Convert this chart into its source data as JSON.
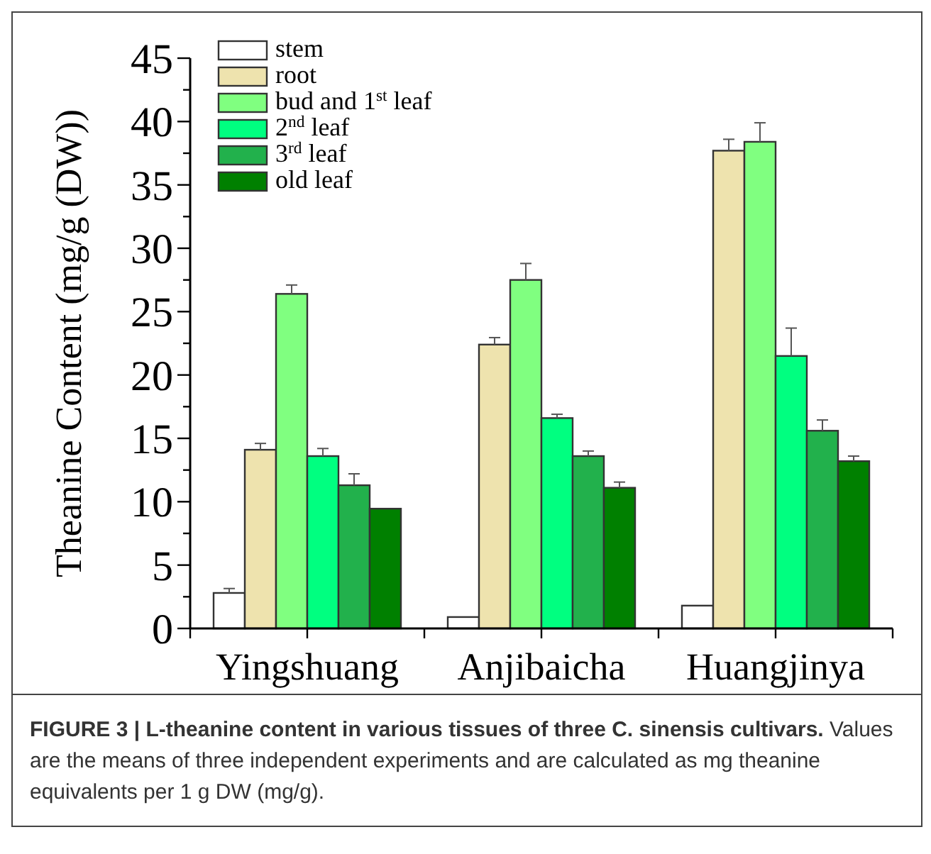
{
  "chart_data": {
    "type": "bar",
    "title": "FIGURE 3 | L-theanine content in various tissues of three C. sinensis cultivars.",
    "ylabel": "Theanine Content (mg/g (DW))",
    "categories": [
      "Yingshuang",
      "Anjibaicha",
      "Huangjinya"
    ],
    "series": [
      {
        "name": "stem",
        "color": "#ffffff",
        "values": [
          2.8,
          0.9,
          1.8
        ],
        "errors": [
          0.35,
          null,
          null
        ]
      },
      {
        "name": "root",
        "color": "#eee3ae",
        "values": [
          14.1,
          22.4,
          37.7
        ],
        "errors": [
          0.5,
          0.55,
          0.9
        ]
      },
      {
        "name": "bud and 1$^{st}$ leaf",
        "color": "#80ff80",
        "values": [
          26.4,
          27.5,
          38.4
        ],
        "errors": [
          0.7,
          1.3,
          1.5
        ]
      },
      {
        "name": "2$^{nd}$ leaf",
        "color": "#00ff80",
        "values": [
          13.6,
          16.6,
          21.5
        ],
        "errors": [
          0.6,
          0.3,
          2.2
        ]
      },
      {
        "name": "3$^{rd}$ leaf",
        "color": "#22b14c",
        "values": [
          11.3,
          13.6,
          15.6
        ],
        "errors": [
          0.9,
          0.4,
          0.85
        ]
      },
      {
        "name": "old leaf",
        "color": "#008000",
        "values": [
          9.45,
          11.1,
          13.2
        ],
        "errors": [
          null,
          0.45,
          0.4
        ]
      }
    ],
    "ylim": [
      0,
      45
    ],
    "yticks": [
      0,
      {
        "value": 2.5,
        "label": null
      },
      5,
      {
        "value": 7.5,
        "label": null
      },
      10,
      {
        "value": 12.5,
        "label": null
      },
      15,
      {
        "value": 17.5,
        "label": null
      },
      20,
      {
        "value": 22.5,
        "label": null
      },
      25,
      {
        "value": 27.5,
        "label": null
      },
      30,
      {
        "value": 32.5,
        "label": null
      },
      35,
      {
        "value": 37.5,
        "label": null
      },
      40,
      {
        "value": 42.5,
        "label": null
      },
      45
    ],
    "legend": "top left",
    "grid": false,
    "annotations": [
      "Values are the means of three independent experiments and are calculated as mg theanine equivalents per 1 g DW (mg/g)."
    ]
  }
}
